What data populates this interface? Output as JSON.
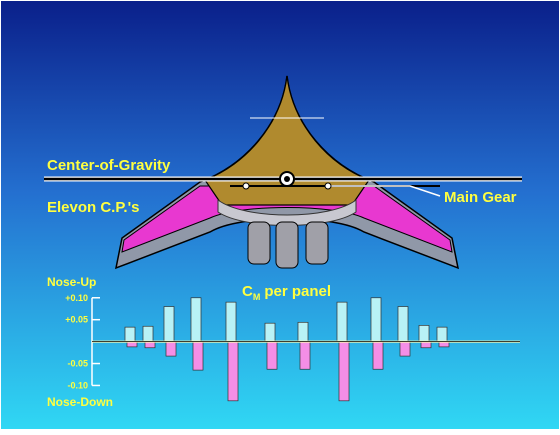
{
  "labels": {
    "cg": "Center-of-Gravity",
    "elevon": "Elevon C.P.'s",
    "gear": "Main Gear"
  },
  "chart_data": {
    "type": "bar",
    "title": {
      "main": "C",
      "sub": "M",
      "rest": "per panel"
    },
    "y_top_label": "Nose-Up",
    "y_bottom_label": "Nose-Down",
    "categories": [
      null,
      null,
      null,
      null,
      null,
      null,
      null,
      null,
      null,
      null,
      null,
      null
    ],
    "series": [
      {
        "color": "#b8f2f6",
        "values": [
          0.033,
          0.035,
          0.08,
          0.1,
          0.09,
          0.042,
          0.044,
          0.09,
          0.1,
          0.08,
          0.037,
          0.033
        ]
      },
      {
        "color": "#f48ee6",
        "values": [
          -0.012,
          -0.014,
          -0.033,
          -0.065,
          -0.135,
          -0.063,
          -0.063,
          -0.135,
          -0.063,
          -0.033,
          -0.014,
          -0.012
        ]
      }
    ],
    "ylim": [
      -0.14,
      0.12
    ],
    "yticks": [
      {
        "value": 0.1,
        "label": "+0.10"
      },
      {
        "value": 0.05,
        "label": "+0.05"
      },
      -0.05,
      {
        "value": -0.1,
        "label": "-0.10"
      }
    ]
  }
}
